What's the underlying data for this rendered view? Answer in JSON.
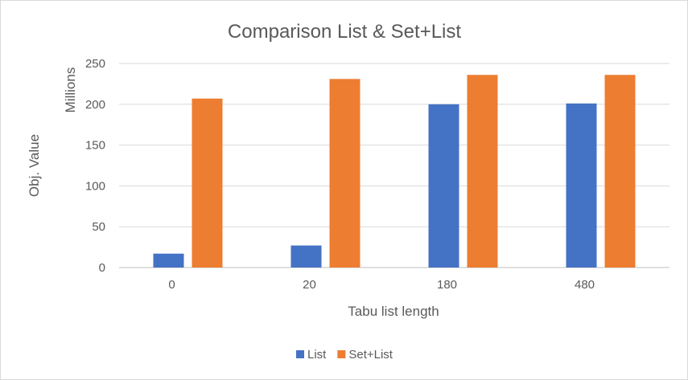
{
  "chart_data": {
    "type": "bar",
    "title": "Comparison List & Set+List",
    "xlabel": "Tabu list length",
    "ylabel": "Obj. Value",
    "yunit": "Millions",
    "categories": [
      "0",
      "20",
      "180",
      "480"
    ],
    "series": [
      {
        "name": "List",
        "color": "#4472C4",
        "values": [
          17,
          27,
          200,
          201
        ]
      },
      {
        "name": "Set+List",
        "color": "#ED7D31",
        "values": [
          207,
          231,
          236,
          236
        ]
      }
    ],
    "ylim": [
      0,
      250
    ],
    "yticks": [
      0,
      50,
      100,
      150,
      200,
      250
    ],
    "grid": true,
    "legend_position": "bottom"
  }
}
